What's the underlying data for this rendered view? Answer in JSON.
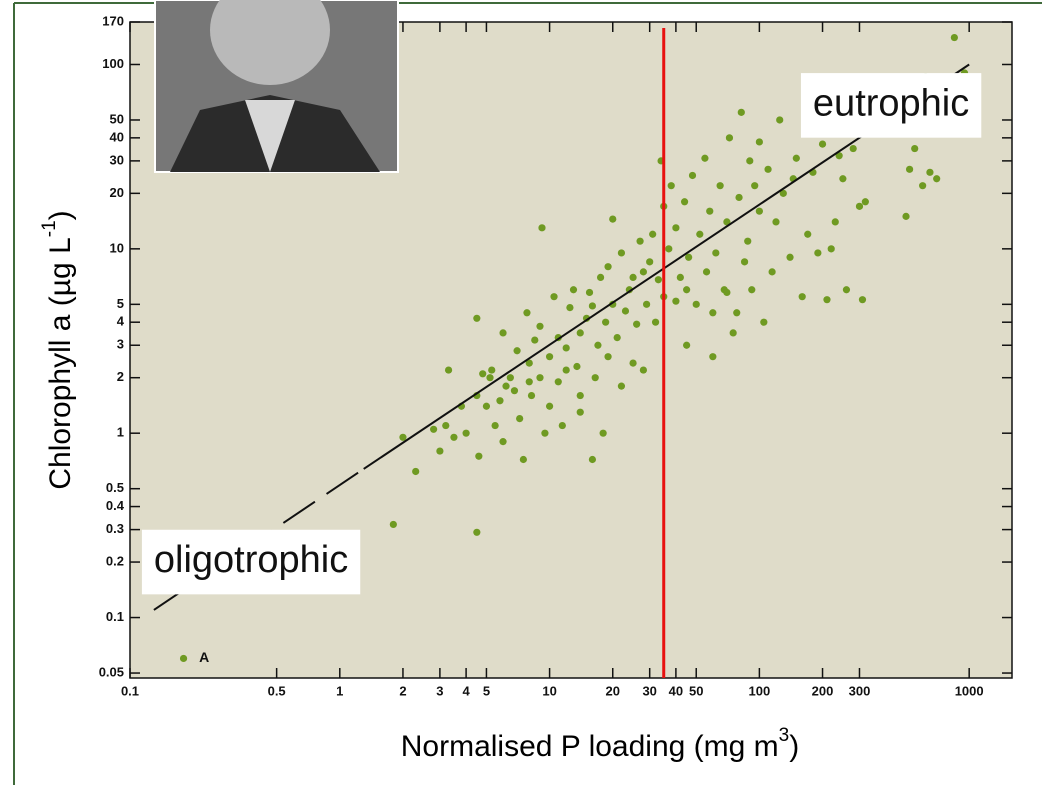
{
  "chart_data": {
    "type": "scatter",
    "xlabel": {
      "text": "Normalised P loading (mg m",
      "sup": "3",
      "after": ")"
    },
    "ylabel": {
      "text": "Chlorophyll a (µg L",
      "sup": "-1",
      "after": ")"
    },
    "xlog": true,
    "ylog": true,
    "xlim": [
      0.1,
      1600
    ],
    "ylim": [
      0.047,
      170
    ],
    "xticks": [
      0.1,
      0.5,
      1,
      2,
      3,
      4,
      5,
      10,
      20,
      30,
      40,
      50,
      100,
      200,
      300,
      1000
    ],
    "yticks": [
      0.05,
      0.1,
      0.2,
      0.3,
      0.4,
      0.5,
      1,
      2,
      3,
      4,
      5,
      10,
      20,
      30,
      40,
      50,
      100,
      170
    ],
    "series": [
      {
        "color": "#6f9a22",
        "x": [
          0.18,
          1.8,
          2,
          2.3,
          2.8,
          3,
          3.3,
          3.2,
          3.5,
          3.8,
          4,
          4.5,
          4.5,
          4.6,
          5,
          4.8,
          5.3,
          5.5,
          5.8,
          6,
          6,
          4.5,
          5.2,
          6.5,
          6.8,
          7,
          7.2,
          7.5,
          7.8,
          8,
          8.2,
          8.5,
          9,
          9.5,
          9.2,
          10,
          10,
          10.5,
          11,
          11,
          11.5,
          12,
          12.5,
          13,
          13.5,
          14,
          14,
          15,
          15.5,
          16,
          16.5,
          17,
          17.5,
          18,
          18.5,
          19,
          20,
          20,
          21,
          22,
          22,
          23,
          24,
          25,
          26,
          27,
          28,
          29,
          30,
          31,
          32,
          33,
          34,
          35,
          35,
          37,
          38,
          40,
          40,
          42,
          44,
          45,
          46,
          48,
          50,
          52,
          55,
          56,
          58,
          60,
          62,
          65,
          68,
          70,
          72,
          75,
          78,
          80,
          82,
          85,
          88,
          90,
          92,
          95,
          100,
          100,
          105,
          110,
          115,
          120,
          125,
          130,
          140,
          145,
          150,
          160,
          170,
          180,
          190,
          200,
          210,
          220,
          230,
          240,
          250,
          260,
          280,
          300,
          310,
          320,
          500,
          520,
          550,
          600,
          620,
          650,
          700,
          850,
          950,
          60,
          25,
          14,
          12,
          8,
          6.2,
          9,
          16,
          19,
          28,
          45,
          70
        ],
        "values": [
          0.06,
          0.32,
          0.95,
          0.62,
          1.05,
          0.8,
          2.2,
          1.1,
          0.95,
          1.4,
          1.0,
          0.29,
          1.6,
          0.75,
          1.4,
          2.1,
          2.2,
          1.1,
          1.5,
          0.9,
          3.5,
          4.2,
          2.0,
          2.0,
          1.7,
          2.8,
          1.2,
          0.72,
          4.5,
          2.4,
          1.6,
          3.2,
          2.0,
          1.0,
          13,
          2.6,
          1.4,
          5.5,
          3.3,
          1.9,
          1.1,
          2.9,
          4.8,
          6.0,
          2.3,
          1.6,
          3.5,
          4.2,
          5.8,
          0.72,
          2.0,
          3.0,
          7.0,
          1.0,
          4.0,
          2.6,
          14.5,
          5.0,
          3.3,
          1.8,
          9.5,
          4.6,
          6.0,
          2.4,
          3.9,
          11,
          7.5,
          5.0,
          8.5,
          12,
          4.0,
          6.8,
          30,
          17,
          5.5,
          10,
          22,
          13,
          5.2,
          7.0,
          18,
          3.0,
          9.0,
          25,
          5.0,
          12,
          31,
          7.5,
          16,
          2.6,
          9.5,
          22,
          6.0,
          14,
          40,
          3.5,
          4.5,
          19,
          55,
          8.5,
          11,
          30,
          6.0,
          22,
          16,
          38,
          4.0,
          27,
          7.5,
          14,
          50,
          20,
          9.0,
          24,
          31,
          5.5,
          12,
          26,
          9.5,
          37,
          5.3,
          10,
          14,
          32,
          24,
          6.0,
          35,
          17,
          5.3,
          18,
          15,
          27,
          35,
          22,
          86,
          26,
          24,
          140,
          90,
          4.5,
          7,
          1.3,
          2.2,
          1.9,
          1.8,
          3.8,
          4.9,
          8,
          2.2,
          6,
          5.8
        ]
      }
    ],
    "fit": {
      "color": "#111111",
      "x": [
        0.13,
        1.3,
        1000
      ],
      "values": [
        0.11,
        0.64,
        100
      ]
    },
    "threshold": {
      "color": "#e8110f",
      "x": 35
    },
    "annotations": [
      {
        "text": "eutrophic",
        "x": 180,
        "y": 60
      },
      {
        "text": "oligotrophic",
        "x": 0.13,
        "y": 0.2
      },
      {
        "text": "A",
        "x": 0.2,
        "y": 0.06
      }
    ]
  }
}
